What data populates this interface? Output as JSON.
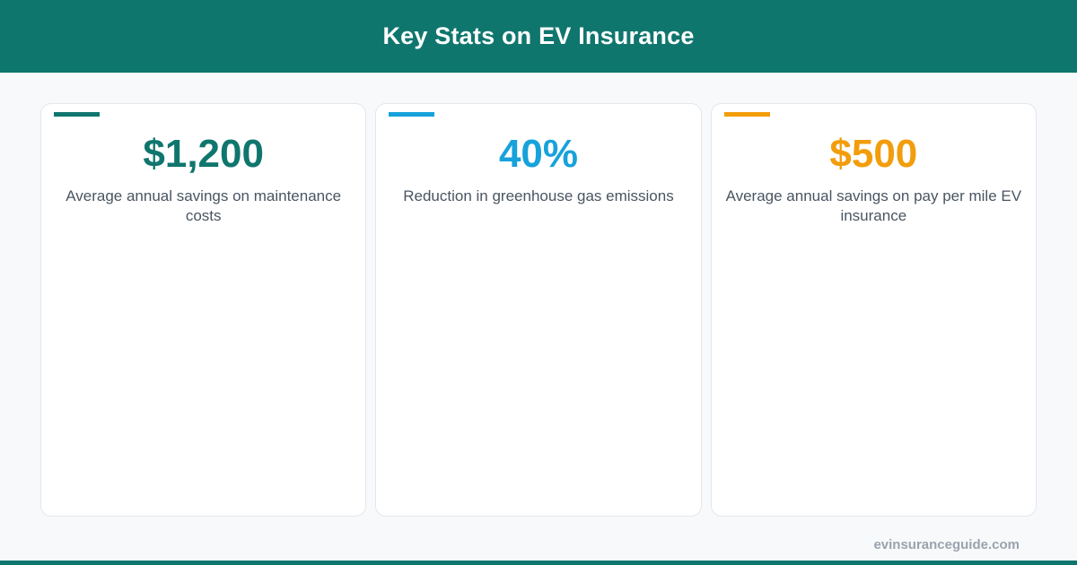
{
  "colors": {
    "brand": "#0f766e",
    "accent_blue": "#17a2db",
    "accent_orange": "#f29d0b",
    "text_muted": "#4a5562",
    "footer_text": "#9aa3ad"
  },
  "header": {
    "title": "Key Stats on EV Insurance"
  },
  "stats": [
    {
      "value": "$1,200",
      "description": "Average annual savings on maintenance costs",
      "color": "#0f766e"
    },
    {
      "value": "40%",
      "description": "Reduction in greenhouse gas emissions",
      "color": "#17a2db"
    },
    {
      "value": "$500",
      "description": "Average annual savings on pay per mile EV insurance",
      "color": "#f29d0b"
    }
  ],
  "footer": {
    "site": "evinsuranceguide.com"
  }
}
